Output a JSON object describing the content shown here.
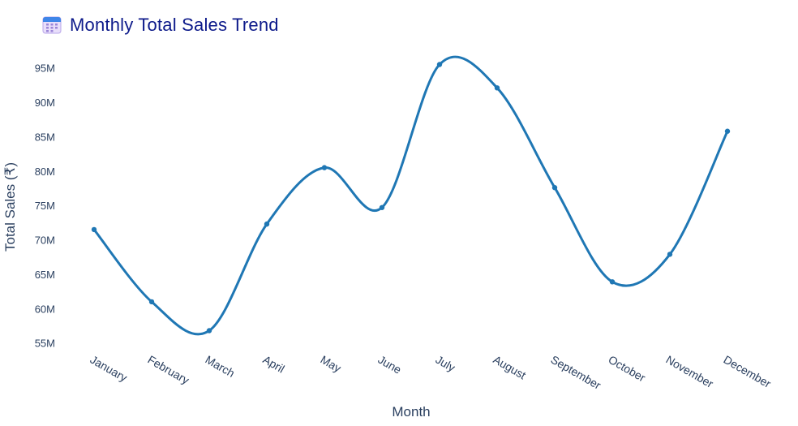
{
  "chart_data": {
    "type": "line",
    "title": "Monthly Total Sales Trend",
    "title_icon": "calendar-icon",
    "xlabel": "Month",
    "ylabel": "Total Sales (₹)",
    "categories": [
      "January",
      "February",
      "March",
      "April",
      "May",
      "June",
      "July",
      "August",
      "September",
      "October",
      "November",
      "December"
    ],
    "series": [
      {
        "values": [
          71.5,
          61.0,
          56.8,
          72.3,
          80.5,
          74.7,
          95.5,
          92.1,
          77.6,
          63.9,
          67.9,
          85.8
        ],
        "color": "#1f77b4"
      }
    ],
    "units": "M",
    "yticks": [
      55,
      60,
      65,
      70,
      75,
      80,
      85,
      90,
      95
    ],
    "ytick_labels": [
      "55M",
      "60M",
      "65M",
      "70M",
      "75M",
      "80M",
      "85M",
      "90M",
      "95M"
    ],
    "ylim": [
      53.2,
      97.8
    ],
    "grid": false,
    "legend": "none",
    "line_shape": "spline",
    "markers": true
  }
}
